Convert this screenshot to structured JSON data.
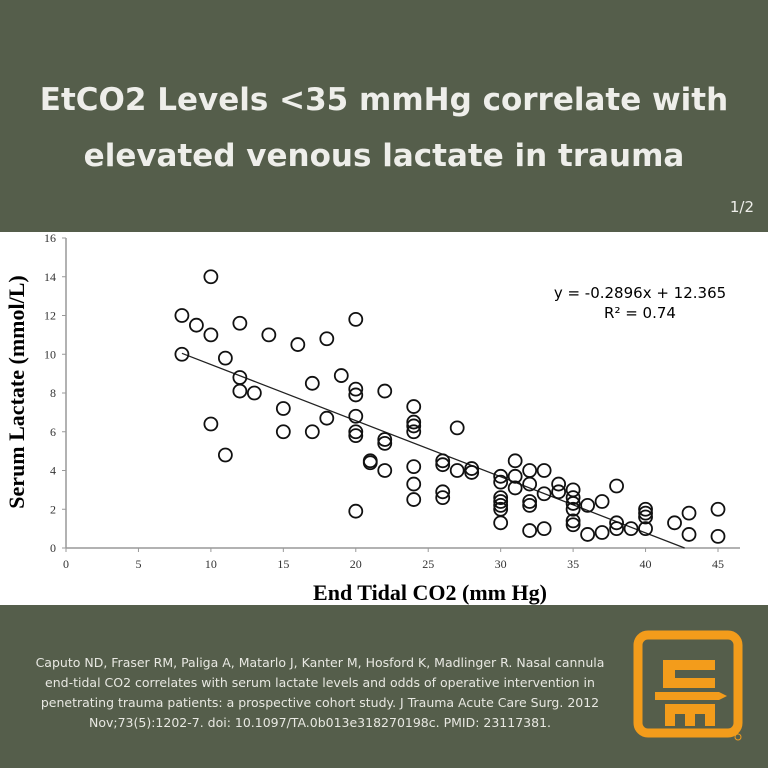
{
  "header": {
    "title_line1": "EtCO2 Levels <35 mmHg correlate with",
    "title_line2": "elevated venous lactate in trauma",
    "page_indicator": "1/2"
  },
  "chart_data": {
    "type": "scatter",
    "xlabel": "End Tidal CO2 (mm Hg)",
    "ylabel": "Serum Lactate (mmol/L)",
    "xlim": [
      0,
      45
    ],
    "ylim": [
      0,
      16
    ],
    "xticks": [
      "0",
      "5",
      "10",
      "15",
      "20",
      "25",
      "30",
      "35",
      "40",
      "45"
    ],
    "yticks": [
      "0",
      "2",
      "4",
      "6",
      "8",
      "10",
      "12",
      "14",
      "16"
    ],
    "grid": false,
    "marker": "open-circle",
    "trendline": {
      "slope": -0.2896,
      "intercept": 12.365,
      "equation": "y = -0.2896x + 12.365",
      "r2": "R² = 0.74"
    },
    "points": [
      [
        8,
        12
      ],
      [
        8,
        10
      ],
      [
        9,
        11.5
      ],
      [
        10,
        14
      ],
      [
        10,
        11
      ],
      [
        10,
        6.4
      ],
      [
        11,
        9.8
      ],
      [
        11,
        4.8
      ],
      [
        12,
        11.6
      ],
      [
        12,
        8.8
      ],
      [
        12,
        8.1
      ],
      [
        13,
        8
      ],
      [
        14,
        11
      ],
      [
        15,
        7.2
      ],
      [
        15,
        6
      ],
      [
        16,
        10.5
      ],
      [
        17,
        8.5
      ],
      [
        17,
        6
      ],
      [
        18,
        10.8
      ],
      [
        18,
        6.7
      ],
      [
        19,
        8.9
      ],
      [
        20,
        11.8
      ],
      [
        20,
        8.2
      ],
      [
        20,
        7.9
      ],
      [
        20,
        6.8
      ],
      [
        20,
        6
      ],
      [
        20,
        5.8
      ],
      [
        20,
        1.9
      ],
      [
        21,
        4.5
      ],
      [
        21,
        4.4
      ],
      [
        22,
        8.1
      ],
      [
        22,
        5.6
      ],
      [
        22,
        5.4
      ],
      [
        22,
        4
      ],
      [
        24,
        7.3
      ],
      [
        24,
        6.5
      ],
      [
        24,
        6.3
      ],
      [
        24,
        6
      ],
      [
        24,
        4.2
      ],
      [
        24,
        3.3
      ],
      [
        24,
        2.5
      ],
      [
        26,
        4.5
      ],
      [
        26,
        4.3
      ],
      [
        26,
        2.9
      ],
      [
        26,
        2.6
      ],
      [
        27,
        6.2
      ],
      [
        27,
        4
      ],
      [
        28,
        4.1
      ],
      [
        28,
        3.9
      ],
      [
        30,
        3.7
      ],
      [
        30,
        3.4
      ],
      [
        30,
        2.6
      ],
      [
        30,
        2.4
      ],
      [
        30,
        2.2
      ],
      [
        30,
        2
      ],
      [
        30,
        1.3
      ],
      [
        31,
        4.5
      ],
      [
        31,
        3.7
      ],
      [
        31,
        3.1
      ],
      [
        32,
        4
      ],
      [
        32,
        3.3
      ],
      [
        32,
        2.4
      ],
      [
        32,
        2.2
      ],
      [
        32,
        0.9
      ],
      [
        33,
        4
      ],
      [
        33,
        2.8
      ],
      [
        33,
        1
      ],
      [
        34,
        3.3
      ],
      [
        34,
        2.9
      ],
      [
        35,
        3
      ],
      [
        35,
        2.6
      ],
      [
        35,
        2.3
      ],
      [
        35,
        2
      ],
      [
        35,
        1.4
      ],
      [
        35,
        1.2
      ],
      [
        36,
        2.2
      ],
      [
        36,
        0.7
      ],
      [
        37,
        2.4
      ],
      [
        37,
        0.8
      ],
      [
        38,
        3.2
      ],
      [
        38,
        1.3
      ],
      [
        38,
        1
      ],
      [
        39,
        1
      ],
      [
        40,
        2
      ],
      [
        40,
        1.8
      ],
      [
        40,
        1.6
      ],
      [
        40,
        1
      ],
      [
        42,
        1.3
      ],
      [
        43,
        1.8
      ],
      [
        43,
        0.7
      ],
      [
        45,
        2
      ],
      [
        45,
        0.6
      ]
    ]
  },
  "footer": {
    "citation": "Caputo ND, Fraser RM, Paliga A, Matarlo J, Kanter M, Hosford K, Madlinger R. Nasal cannula end-tidal CO2 correlates with serum lactate levels and odds of operative intervention in penetrating trauma patients: a prospective cohort study. J Trauma Acute Care Surg. 2012 Nov;73(5):1202-7. doi: 10.1097/TA.0b013e318270198c. PMID: 23117381.",
    "logo_text": "CM"
  },
  "colors": {
    "background": "#555e4b",
    "logo": "#f39c1b",
    "title": "#eeeeea"
  }
}
